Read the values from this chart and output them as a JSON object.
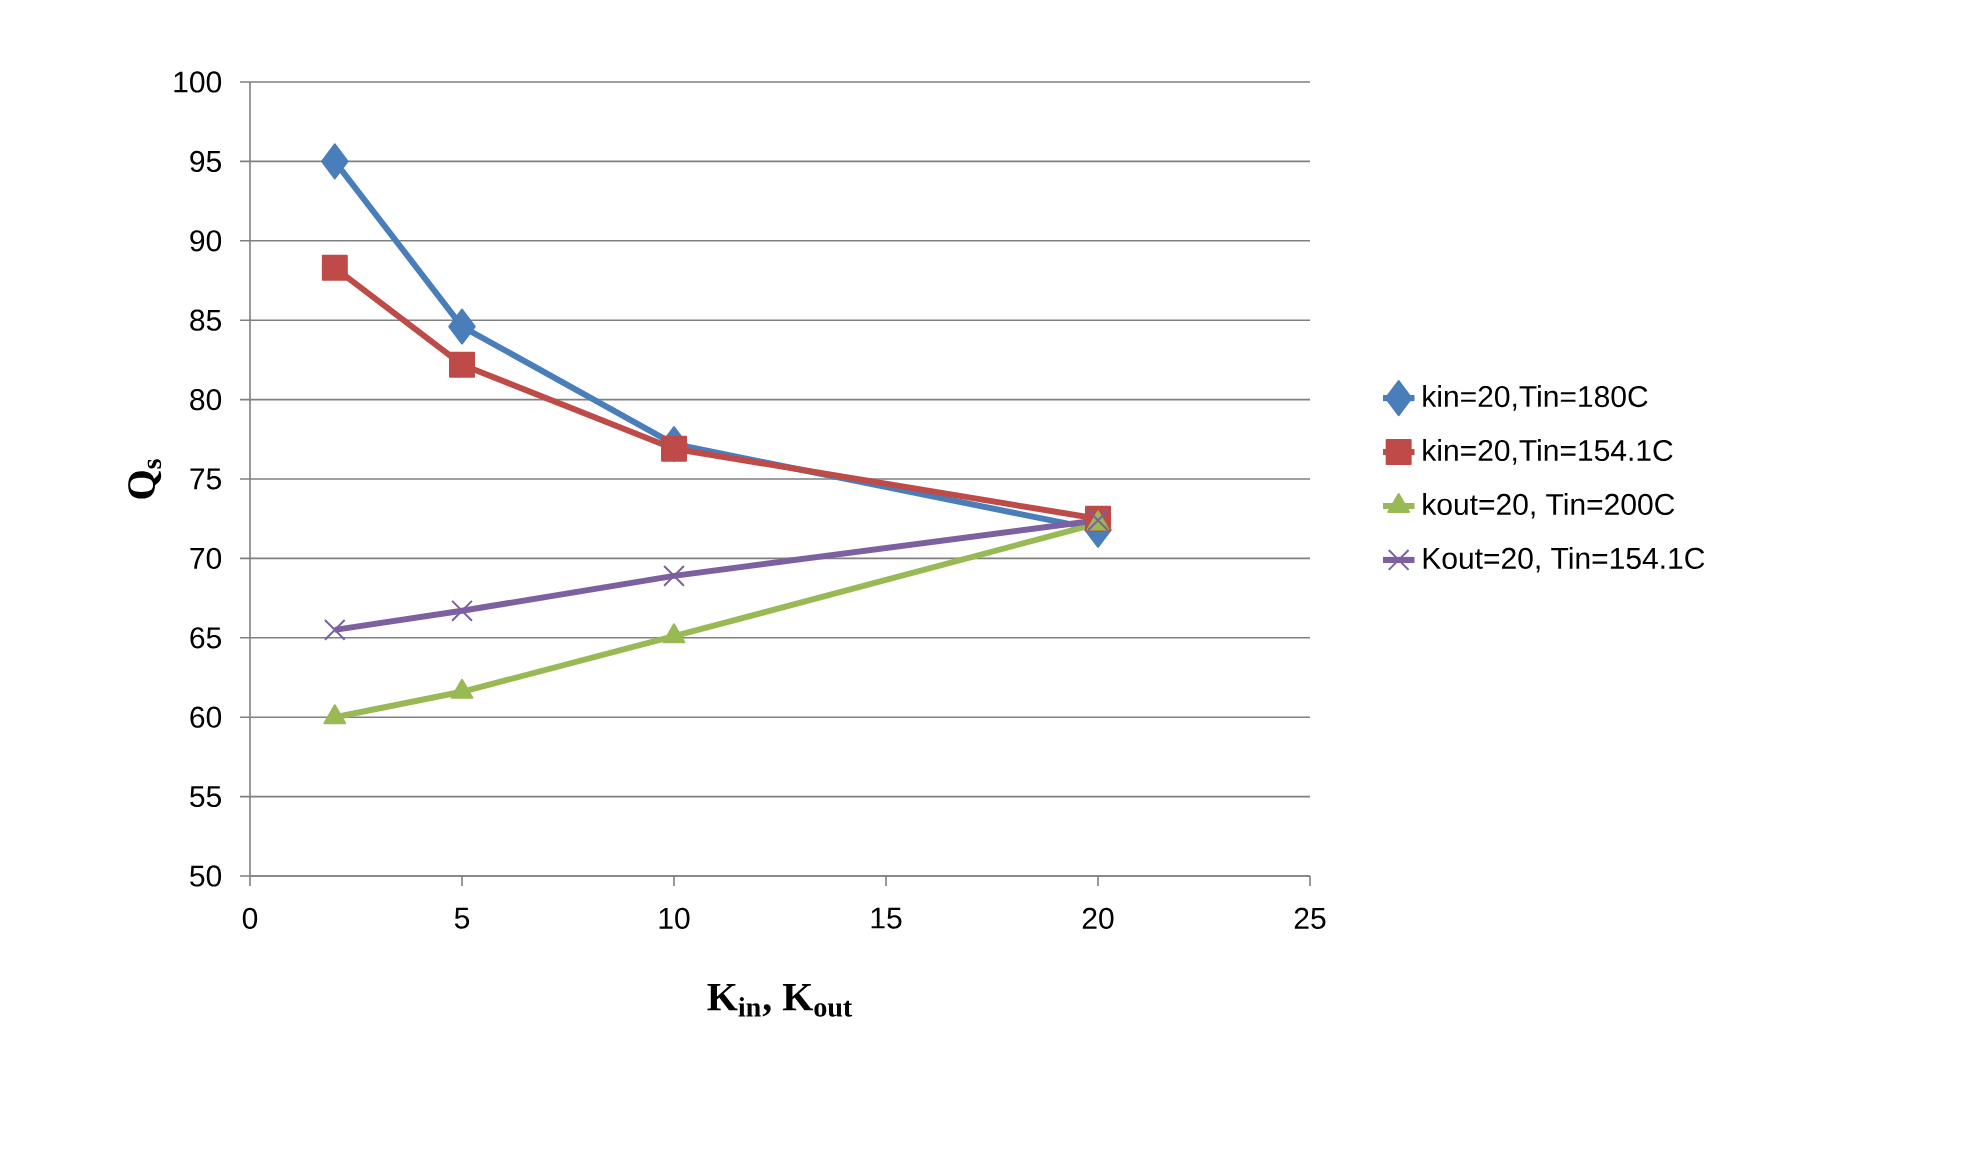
{
  "chart_data": {
    "type": "line",
    "xlabel": "K$_{in}$, K$_{out}$",
    "ylabel": "Q$_{s}$",
    "x": [
      2,
      5,
      10,
      20
    ],
    "series": [
      {
        "name": "kin=20,Tin=180C",
        "color": "#4a7ebb",
        "marker": "diamond",
        "values": [
          95,
          84.6,
          77.2,
          71.8
        ]
      },
      {
        "name": "kin=20,Tin=154.1C",
        "color": "#be4b48",
        "marker": "square",
        "values": [
          88.3,
          82.2,
          76.9,
          72.5
        ]
      },
      {
        "name": "kout=20, Tin=200C",
        "color": "#98b954",
        "marker": "triangle",
        "values": [
          60,
          61.6,
          65.1,
          72.2
        ]
      },
      {
        "name": "Kout=20, Tin=154.1C",
        "color": "#7d60a0",
        "marker": "cross",
        "values": [
          65.5,
          66.7,
          68.9,
          72.4
        ]
      }
    ],
    "xlim": [
      0,
      25
    ],
    "xticks": [
      0,
      5,
      10,
      15,
      20,
      25
    ],
    "ylim": [
      50,
      100
    ],
    "yticks": [
      50,
      55,
      60,
      65,
      70,
      75,
      80,
      85,
      90,
      95,
      100
    ],
    "grid": "y",
    "legend": "right",
    "line_style": "solid"
  }
}
